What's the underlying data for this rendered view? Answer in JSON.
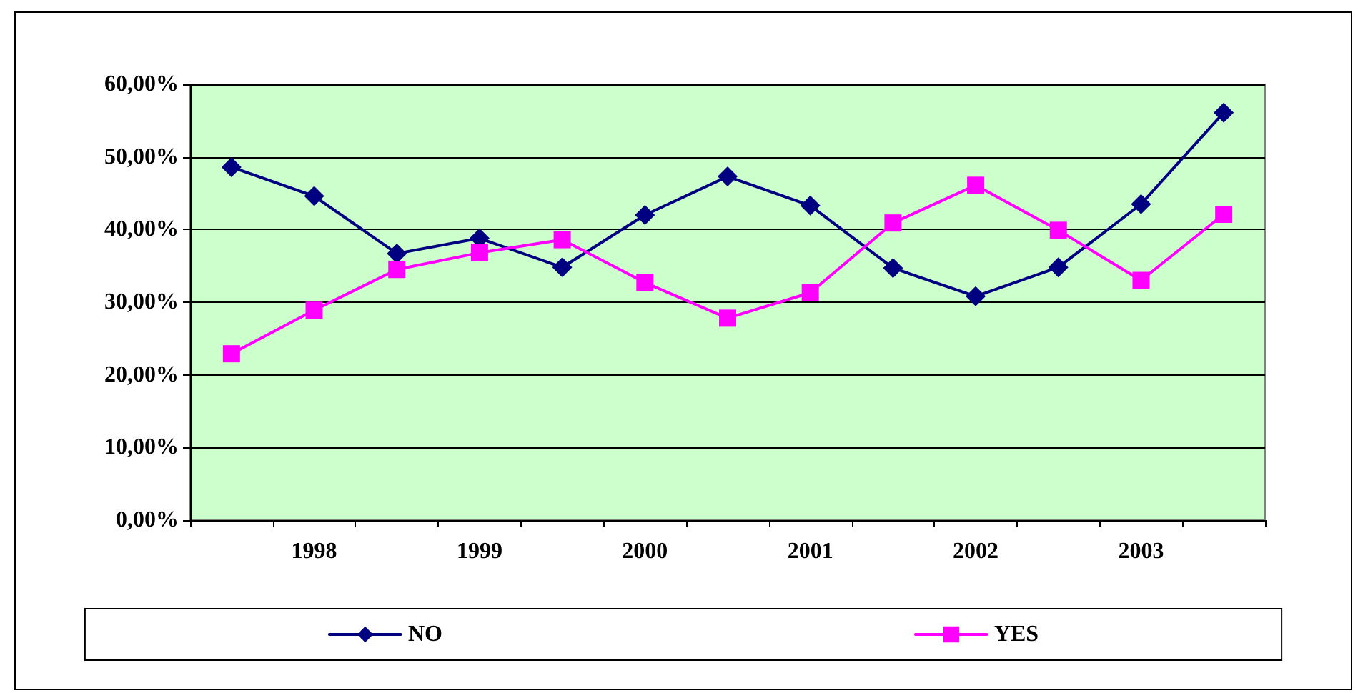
{
  "chart_data": {
    "type": "line",
    "categories": [
      null,
      "1998",
      null,
      "1999",
      null,
      "2000",
      null,
      "2001",
      null,
      "2002",
      null,
      "2003",
      null
    ],
    "series": [
      {
        "name": "NO",
        "color": "#000080",
        "marker": "diamond",
        "values": [
          48.6,
          44.6,
          36.7,
          38.8,
          34.8,
          42,
          47.3,
          43.3,
          34.7,
          30.8,
          34.8,
          43.5,
          56.1
        ]
      },
      {
        "name": "YES",
        "color": "#ff00ff",
        "marker": "square",
        "values": [
          22.9,
          28.9,
          34.5,
          36.8,
          38.6,
          32.7,
          27.8,
          31.3,
          40.9,
          46.1,
          39.9,
          33,
          42.1
        ]
      }
    ],
    "ylim": [
      0,
      60
    ],
    "yticks": [
      {
        "value": 0,
        "label": "0,00%"
      },
      {
        "value": 10,
        "label": "10,00%"
      },
      {
        "value": 20,
        "label": "20,00%"
      },
      {
        "value": 30,
        "label": "30,00%"
      },
      {
        "value": 40,
        "label": "40,00%"
      },
      {
        "value": 50,
        "label": "50,00%"
      },
      {
        "value": 60,
        "label": "60,00%"
      }
    ],
    "grid": "y",
    "legend": "bottom",
    "line_style": "solid"
  }
}
